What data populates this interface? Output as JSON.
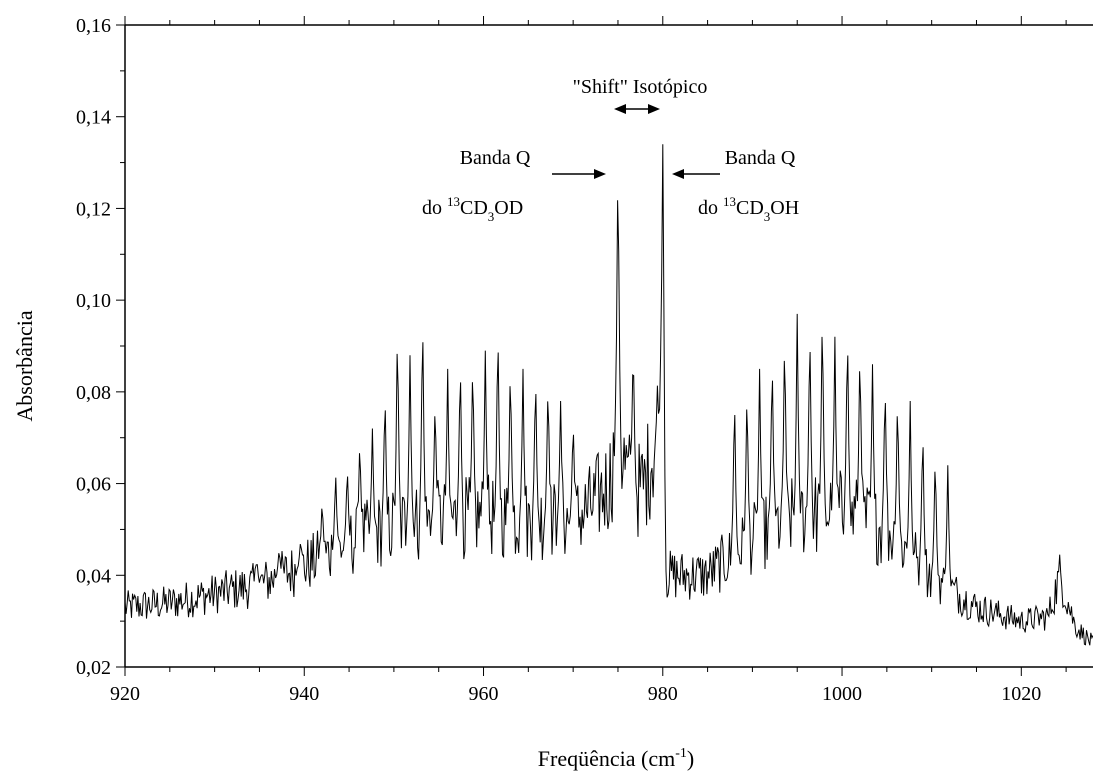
{
  "chart_data": {
    "type": "line",
    "xlabel": "Freqüência (cm",
    "xlabel_sup": "-1",
    "xlabel_suffix": ")",
    "ylabel": "Absorbância",
    "xlim": [
      920,
      1028
    ],
    "ylim": [
      0.02,
      0.16
    ],
    "x_ticks": [
      920,
      940,
      960,
      980,
      1000,
      1020
    ],
    "x_tick_labels": [
      "920",
      "940",
      "960",
      "980",
      "1000",
      "1020"
    ],
    "y_ticks": [
      0.02,
      0.04,
      0.06,
      0.08,
      0.1,
      0.12,
      0.14,
      0.16
    ],
    "y_tick_labels": [
      "0,02",
      "0,04",
      "0,06",
      "0,08",
      "0,10",
      "0,12",
      "0,14",
      "0,16"
    ],
    "grid": false,
    "line_color": "#000000",
    "baseline_points": [
      [
        920,
        0.033
      ],
      [
        925,
        0.034
      ],
      [
        930,
        0.036
      ],
      [
        935,
        0.038
      ],
      [
        940,
        0.042
      ],
      [
        945,
        0.047
      ],
      [
        950,
        0.051
      ],
      [
        955,
        0.052
      ],
      [
        960,
        0.053
      ],
      [
        965,
        0.052
      ],
      [
        970,
        0.052
      ],
      [
        972,
        0.055
      ],
      [
        974,
        0.06
      ],
      [
        975,
        0.07
      ],
      [
        976,
        0.062
      ],
      [
        977,
        0.058
      ],
      [
        978,
        0.06
      ],
      [
        979,
        0.068
      ],
      [
        980,
        0.08
      ],
      [
        980.3,
        0.04
      ],
      [
        985,
        0.04
      ],
      [
        990,
        0.048
      ],
      [
        995,
        0.053
      ],
      [
        1000,
        0.054
      ],
      [
        1005,
        0.05
      ],
      [
        1010,
        0.04
      ],
      [
        1015,
        0.033
      ],
      [
        1020,
        0.03
      ],
      [
        1023,
        0.031
      ],
      [
        1024.3,
        0.04
      ],
      [
        1026,
        0.029
      ],
      [
        1028,
        0.025
      ]
    ],
    "peaks": [
      [
        934.7,
        0.044
      ],
      [
        937.2,
        0.046
      ],
      [
        939.6,
        0.048
      ],
      [
        942.0,
        0.057
      ],
      [
        943.5,
        0.063
      ],
      [
        944.8,
        0.065
      ],
      [
        946.2,
        0.071
      ],
      [
        947.6,
        0.072
      ],
      [
        949.0,
        0.082
      ],
      [
        950.4,
        0.097
      ],
      [
        951.8,
        0.088
      ],
      [
        953.2,
        0.1
      ],
      [
        954.6,
        0.08
      ],
      [
        956.0,
        0.085
      ],
      [
        957.4,
        0.089
      ],
      [
        958.8,
        0.089
      ],
      [
        960.2,
        0.089
      ],
      [
        961.6,
        0.097
      ],
      [
        963.0,
        0.088
      ],
      [
        964.4,
        0.085
      ],
      [
        965.8,
        0.086
      ],
      [
        967.2,
        0.084
      ],
      [
        968.6,
        0.078
      ],
      [
        970.0,
        0.075
      ],
      [
        975.0,
        0.134
      ],
      [
        976.7,
        0.093
      ],
      [
        980.0,
        0.134
      ],
      [
        988.0,
        0.082
      ],
      [
        989.4,
        0.083
      ],
      [
        990.8,
        0.085
      ],
      [
        992.2,
        0.09
      ],
      [
        993.6,
        0.095
      ],
      [
        995.0,
        0.097
      ],
      [
        996.4,
        0.097
      ],
      [
        997.8,
        0.101
      ],
      [
        999.2,
        0.092
      ],
      [
        1000.6,
        0.096
      ],
      [
        1002.0,
        0.092
      ],
      [
        1003.4,
        0.086
      ],
      [
        1004.8,
        0.084
      ],
      [
        1006.2,
        0.081
      ],
      [
        1007.6,
        0.078
      ],
      [
        1009.0,
        0.074
      ],
      [
        1010.4,
        0.068
      ],
      [
        1011.8,
        0.064
      ]
    ],
    "annotations": {
      "shift_label": "\"Shift\" Isotópico",
      "left_line1": "Banda Q",
      "left_line2_pre": "do ",
      "left_sup": "13",
      "left_main": "CD",
      "left_sub": "3",
      "left_end": "OD",
      "right_line1": "Banda Q",
      "right_line2_pre": "do ",
      "right_sup": "13",
      "right_main": "CD",
      "right_sub": "3",
      "right_end": "OH"
    }
  }
}
